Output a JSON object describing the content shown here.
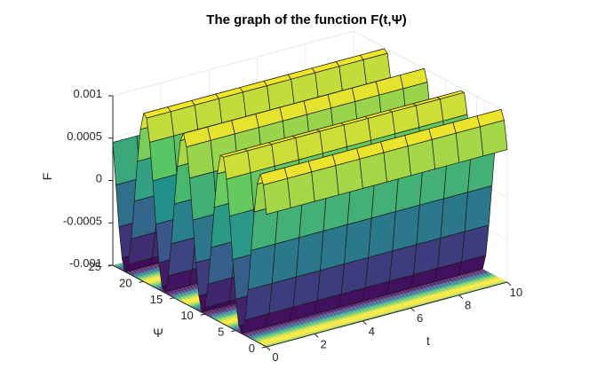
{
  "chart_data": {
    "type": "surface",
    "title": "The graph of the function F(t,Ψ)",
    "xlabel": "t",
    "ylabel": "Ψ",
    "zlabel": "F",
    "xlim": [
      0,
      10
    ],
    "ylim": [
      0,
      25
    ],
    "zlim": [
      -0.001,
      0.001
    ],
    "xticks": [
      0,
      2,
      4,
      6,
      8,
      10
    ],
    "yticks": [
      0,
      5,
      10,
      15,
      20,
      25
    ],
    "zticks": [
      -0.001,
      -0.0005,
      0,
      0.0005,
      0.001
    ],
    "xtick_labels": [
      "0",
      "2",
      "4",
      "6",
      "8",
      "10"
    ],
    "ytick_labels": [
      "0",
      "5",
      "10",
      "15",
      "20",
      "25"
    ],
    "ztick_labels": [
      "-0.001",
      "-0.0005",
      "0",
      "0.0005",
      "0.001"
    ],
    "grid": true,
    "colormap": "viridis",
    "description_values": {
      "t_grid": [
        0,
        1,
        2,
        3,
        4,
        5,
        6,
        7,
        8,
        9,
        10
      ],
      "psi_grid": [
        0,
        0.5,
        1,
        1.5,
        2,
        2.5,
        3,
        3.5,
        4,
        4.5,
        5,
        5.5,
        6,
        6.5,
        7,
        7.5,
        8,
        8.5,
        9,
        9.5,
        10,
        10.5,
        11,
        11.5,
        12,
        12.5,
        13,
        13.5,
        14,
        14.5,
        15,
        15.5,
        16,
        16.5,
        17,
        17.5,
        18,
        18.5,
        19,
        19.5,
        20,
        20.5,
        21,
        21.5,
        22,
        22.5,
        23,
        23.5,
        24,
        24.5,
        25
      ],
      "F_profile": "F = 0.001 * sin(psi + 0.6), independent of t"
    },
    "contour_colors": [
      "#440154",
      "#3b528b",
      "#21918c",
      "#5ec962",
      "#fde725"
    ]
  }
}
